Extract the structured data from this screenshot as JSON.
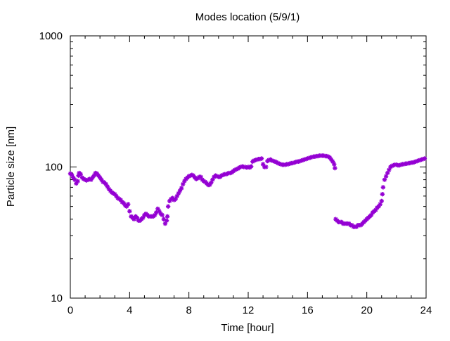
{
  "chart_data": {
    "type": "scatter",
    "title": "Modes location (5/9/1)",
    "xlabel": "Time [hour]",
    "ylabel": "Particle size [nm]",
    "xlim": [
      0,
      24
    ],
    "ylim": [
      10,
      1000
    ],
    "yscale": "log",
    "xticks": [
      0,
      4,
      8,
      12,
      16,
      20,
      24
    ],
    "xtick_labels": [
      "0",
      "4",
      "8",
      "12",
      "16",
      "20",
      "24"
    ],
    "yticks": [
      10,
      100,
      1000
    ],
    "ytick_labels": [
      "10",
      "100",
      "1000"
    ],
    "grid": false,
    "marker": "star",
    "color": "#9400d3",
    "series": [
      {
        "values": [
          [
            0.0,
            89
          ],
          [
            0.1,
            87
          ],
          [
            0.2,
            83
          ],
          [
            0.3,
            80
          ],
          [
            0.4,
            75
          ],
          [
            0.5,
            78
          ],
          [
            0.55,
            86
          ],
          [
            0.6,
            90
          ],
          [
            0.7,
            88
          ],
          [
            0.8,
            83
          ],
          [
            0.9,
            81
          ],
          [
            1.0,
            80
          ],
          [
            1.1,
            79
          ],
          [
            1.2,
            80
          ],
          [
            1.3,
            81
          ],
          [
            1.4,
            80
          ],
          [
            1.5,
            83
          ],
          [
            1.6,
            86
          ],
          [
            1.7,
            90
          ],
          [
            1.8,
            89
          ],
          [
            1.9,
            86
          ],
          [
            2.0,
            83
          ],
          [
            2.1,
            80
          ],
          [
            2.2,
            77
          ],
          [
            2.3,
            76
          ],
          [
            2.4,
            74
          ],
          [
            2.5,
            71
          ],
          [
            2.6,
            68
          ],
          [
            2.7,
            66
          ],
          [
            2.8,
            64
          ],
          [
            2.9,
            63
          ],
          [
            3.0,
            62
          ],
          [
            3.1,
            60
          ],
          [
            3.2,
            58
          ],
          [
            3.3,
            57
          ],
          [
            3.4,
            56
          ],
          [
            3.5,
            54
          ],
          [
            3.6,
            53
          ],
          [
            3.7,
            51
          ],
          [
            3.8,
            50
          ],
          [
            3.9,
            52
          ],
          [
            4.0,
            46
          ],
          [
            4.1,
            42
          ],
          [
            4.2,
            41
          ],
          [
            4.3,
            40
          ],
          [
            4.4,
            42
          ],
          [
            4.5,
            41
          ],
          [
            4.6,
            39
          ],
          [
            4.7,
            39
          ],
          [
            4.8,
            40
          ],
          [
            4.9,
            41
          ],
          [
            5.0,
            43
          ],
          [
            5.1,
            44
          ],
          [
            5.2,
            43
          ],
          [
            5.3,
            42
          ],
          [
            5.4,
            42
          ],
          [
            5.5,
            42
          ],
          [
            5.6,
            42
          ],
          [
            5.7,
            43
          ],
          [
            5.8,
            45
          ],
          [
            5.9,
            48
          ],
          [
            6.0,
            46
          ],
          [
            6.1,
            44
          ],
          [
            6.2,
            43
          ],
          [
            6.3,
            40
          ],
          [
            6.4,
            37
          ],
          [
            6.5,
            39
          ],
          [
            6.55,
            42
          ],
          [
            6.6,
            50
          ],
          [
            6.7,
            55
          ],
          [
            6.8,
            57
          ],
          [
            6.9,
            58
          ],
          [
            7.0,
            56
          ],
          [
            7.1,
            57
          ],
          [
            7.2,
            60
          ],
          [
            7.3,
            63
          ],
          [
            7.4,
            66
          ],
          [
            7.5,
            69
          ],
          [
            7.6,
            74
          ],
          [
            7.7,
            78
          ],
          [
            7.8,
            81
          ],
          [
            7.9,
            83
          ],
          [
            8.0,
            85
          ],
          [
            8.1,
            86
          ],
          [
            8.2,
            87
          ],
          [
            8.3,
            86
          ],
          [
            8.4,
            83
          ],
          [
            8.5,
            81
          ],
          [
            8.6,
            82
          ],
          [
            8.7,
            84
          ],
          [
            8.8,
            84
          ],
          [
            8.9,
            80
          ],
          [
            9.0,
            78
          ],
          [
            9.1,
            77
          ],
          [
            9.2,
            75
          ],
          [
            9.3,
            73
          ],
          [
            9.4,
            73
          ],
          [
            9.5,
            76
          ],
          [
            9.6,
            80
          ],
          [
            9.7,
            84
          ],
          [
            9.8,
            86
          ],
          [
            9.9,
            85
          ],
          [
            10.0,
            84
          ],
          [
            10.1,
            84
          ],
          [
            10.2,
            86
          ],
          [
            10.3,
            87
          ],
          [
            10.4,
            88
          ],
          [
            10.5,
            88
          ],
          [
            10.6,
            89
          ],
          [
            10.7,
            90
          ],
          [
            10.8,
            90
          ],
          [
            10.9,
            91
          ],
          [
            11.0,
            93
          ],
          [
            11.1,
            95
          ],
          [
            11.2,
            96
          ],
          [
            11.3,
            97
          ],
          [
            11.4,
            99
          ],
          [
            11.5,
            100
          ],
          [
            11.6,
            101
          ],
          [
            11.7,
            100
          ],
          [
            11.8,
            100
          ],
          [
            11.9,
            99
          ],
          [
            12.0,
            100
          ],
          [
            12.1,
            99
          ],
          [
            12.2,
            101
          ],
          [
            12.3,
            110
          ],
          [
            12.4,
            112
          ],
          [
            12.5,
            113
          ],
          [
            12.6,
            114
          ],
          [
            12.7,
            115
          ],
          [
            12.8,
            115
          ],
          [
            12.9,
            116
          ],
          [
            13.0,
            105
          ],
          [
            13.1,
            100
          ],
          [
            13.2,
            100
          ],
          [
            13.3,
            111
          ],
          [
            13.4,
            113
          ],
          [
            13.5,
            114
          ],
          [
            13.6,
            112
          ],
          [
            13.7,
            111
          ],
          [
            13.8,
            110
          ],
          [
            13.9,
            109
          ],
          [
            14.0,
            107
          ],
          [
            14.1,
            106
          ],
          [
            14.2,
            105
          ],
          [
            14.3,
            104
          ],
          [
            14.4,
            104
          ],
          [
            14.5,
            104
          ],
          [
            14.6,
            105
          ],
          [
            14.7,
            105
          ],
          [
            14.8,
            106
          ],
          [
            14.9,
            107
          ],
          [
            15.0,
            107
          ],
          [
            15.1,
            108
          ],
          [
            15.2,
            109
          ],
          [
            15.3,
            110
          ],
          [
            15.4,
            110
          ],
          [
            15.5,
            111
          ],
          [
            15.6,
            112
          ],
          [
            15.7,
            113
          ],
          [
            15.8,
            114
          ],
          [
            15.9,
            115
          ],
          [
            16.0,
            116
          ],
          [
            16.1,
            117
          ],
          [
            16.2,
            118
          ],
          [
            16.3,
            119
          ],
          [
            16.4,
            120
          ],
          [
            16.5,
            120
          ],
          [
            16.6,
            121
          ],
          [
            16.7,
            121
          ],
          [
            16.8,
            122
          ],
          [
            16.9,
            122
          ],
          [
            17.0,
            122
          ],
          [
            17.1,
            122
          ],
          [
            17.2,
            121
          ],
          [
            17.3,
            121
          ],
          [
            17.4,
            120
          ],
          [
            17.5,
            118
          ],
          [
            17.6,
            114
          ],
          [
            17.7,
            110
          ],
          [
            17.8,
            105
          ],
          [
            17.85,
            98
          ],
          [
            17.9,
            40
          ],
          [
            18.0,
            39
          ],
          [
            18.1,
            38
          ],
          [
            18.2,
            38
          ],
          [
            18.3,
            38
          ],
          [
            18.4,
            37
          ],
          [
            18.5,
            37
          ],
          [
            18.6,
            37
          ],
          [
            18.7,
            37
          ],
          [
            18.8,
            37
          ],
          [
            18.9,
            36
          ],
          [
            19.0,
            36
          ],
          [
            19.1,
            35
          ],
          [
            19.2,
            35
          ],
          [
            19.3,
            35
          ],
          [
            19.4,
            36
          ],
          [
            19.5,
            36
          ],
          [
            19.6,
            36
          ],
          [
            19.7,
            37
          ],
          [
            19.8,
            38
          ],
          [
            19.9,
            39
          ],
          [
            20.0,
            40
          ],
          [
            20.1,
            41
          ],
          [
            20.2,
            42
          ],
          [
            20.3,
            43
          ],
          [
            20.4,
            45
          ],
          [
            20.5,
            46
          ],
          [
            20.6,
            47
          ],
          [
            20.7,
            49
          ],
          [
            20.8,
            50
          ],
          [
            20.9,
            52
          ],
          [
            21.0,
            55
          ],
          [
            21.05,
            62
          ],
          [
            21.1,
            70
          ],
          [
            21.2,
            80
          ],
          [
            21.3,
            85
          ],
          [
            21.4,
            90
          ],
          [
            21.5,
            95
          ],
          [
            21.6,
            100
          ],
          [
            21.7,
            102
          ],
          [
            21.8,
            103
          ],
          [
            21.9,
            104
          ],
          [
            22.0,
            104
          ],
          [
            22.1,
            103
          ],
          [
            22.2,
            103
          ],
          [
            22.3,
            104
          ],
          [
            22.4,
            105
          ],
          [
            22.5,
            105
          ],
          [
            22.6,
            106
          ],
          [
            22.7,
            106
          ],
          [
            22.8,
            107
          ],
          [
            22.9,
            107
          ],
          [
            23.0,
            108
          ],
          [
            23.1,
            108
          ],
          [
            23.2,
            109
          ],
          [
            23.3,
            110
          ],
          [
            23.4,
            111
          ],
          [
            23.5,
            112
          ],
          [
            23.6,
            113
          ],
          [
            23.7,
            114
          ],
          [
            23.8,
            115
          ],
          [
            23.9,
            116
          ]
        ]
      }
    ]
  }
}
